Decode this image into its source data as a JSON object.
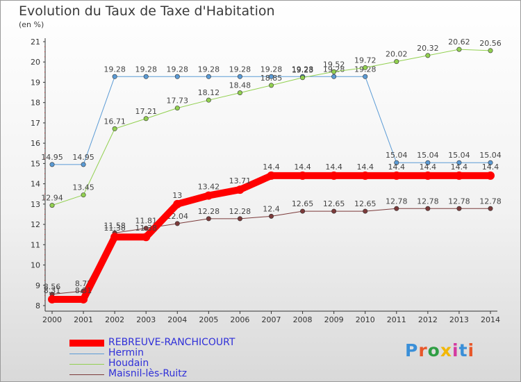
{
  "title": "Evolution du Taux de Taxe d'Habitation",
  "unit_label": "(en %)",
  "logo_text": "Proxiti",
  "chart_data": {
    "type": "line",
    "x": [
      2000,
      2001,
      2002,
      2003,
      2004,
      2005,
      2006,
      2007,
      2008,
      2009,
      2010,
      2011,
      2012,
      2013,
      2014
    ],
    "ylim": [
      8,
      21
    ],
    "yticks": [
      8,
      9,
      10,
      11,
      12,
      13,
      14,
      15,
      16,
      17,
      18,
      19,
      20,
      21
    ],
    "xlabel": "",
    "ylabel": "",
    "grid": false,
    "legend_position": "bottom-left",
    "series": [
      {
        "name": "REBREUVE-RANCHICOURT",
        "color": "#ff0000",
        "width": 10,
        "values": [
          8.31,
          8.31,
          11.38,
          11.38,
          13,
          13.42,
          13.71,
          14.4,
          14.4,
          14.4,
          14.4,
          14.4,
          14.4,
          14.4,
          14.4
        ]
      },
      {
        "name": "Hermin",
        "color": "#5b9bd5",
        "width": 1,
        "values": [
          14.95,
          14.95,
          19.28,
          19.28,
          19.28,
          19.28,
          19.28,
          19.28,
          19.28,
          19.28,
          19.28,
          15.04,
          15.04,
          15.04,
          15.04
        ]
      },
      {
        "name": "Houdain",
        "color": "#92d050",
        "width": 1,
        "values": [
          12.94,
          13.45,
          16.71,
          17.21,
          17.73,
          18.12,
          18.48,
          18.85,
          19.23,
          19.52,
          19.72,
          20.02,
          20.32,
          20.62,
          20.56
        ]
      },
      {
        "name": "Maisnil-lès-Ruitz",
        "color": "#7b3a3a",
        "width": 1,
        "values": [
          8.56,
          8.72,
          11.58,
          11.81,
          12.04,
          12.28,
          12.28,
          12.4,
          12.65,
          12.65,
          12.65,
          12.78,
          12.78,
          12.78,
          12.78
        ]
      }
    ]
  },
  "legend": [
    {
      "label": "REBREUVE-RANCHICOURT",
      "color": "#ff0000",
      "thickness": 10
    },
    {
      "label": "Hermin",
      "color": "#5b9bd5",
      "thickness": 1
    },
    {
      "label": "Houdain",
      "color": "#92d050",
      "thickness": 1
    },
    {
      "label": "Maisnil-lès-Ruitz",
      "color": "#7b3a3a",
      "thickness": 1
    }
  ]
}
